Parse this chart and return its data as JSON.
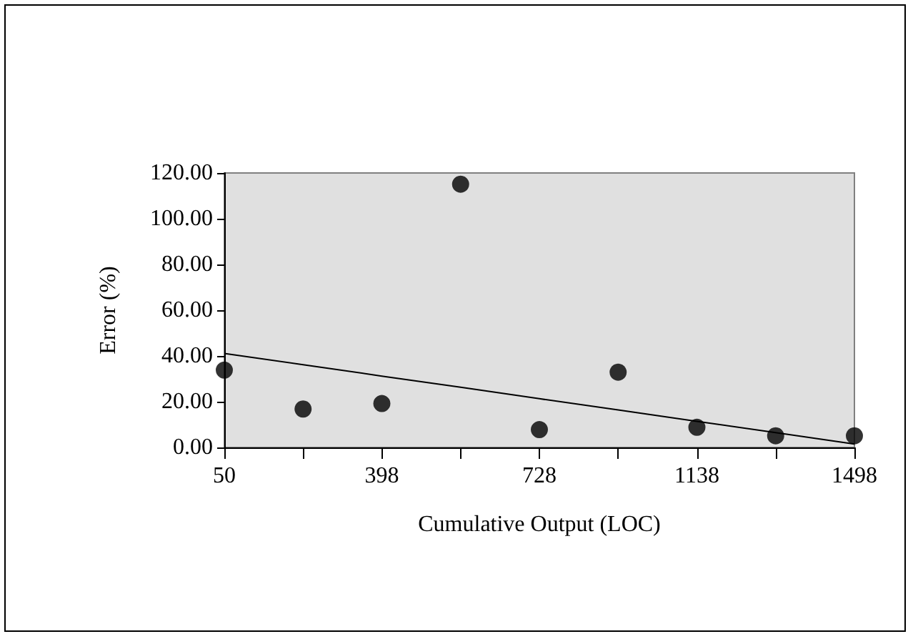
{
  "chart_data": {
    "type": "scatter",
    "xlabel": "Cumulative Output (LOC)",
    "ylabel": "Error (%)",
    "categories": [
      "50",
      null,
      "398",
      null,
      "728",
      null,
      "1138",
      null,
      "1498"
    ],
    "series": [
      {
        "color": "#000000",
        "marker": "circle",
        "values": [
          33.8,
          16.8,
          19.2,
          115.1,
          7.8,
          32.9,
          8.8,
          5.1,
          5.1
        ]
      },
      {
        "type": "line",
        "color": "#000000",
        "marker": "none",
        "line_style": "solid",
        "values": [
          41.1,
          36.2,
          31.2,
          26.3,
          21.3,
          16.4,
          11.4,
          6.5,
          1.5
        ]
      }
    ],
    "ylim": [
      0,
      120
    ],
    "yticks": [
      {
        "value": 0,
        "label": "0.00"
      },
      {
        "value": 20,
        "label": "20.00"
      },
      {
        "value": 40,
        "label": "40.00"
      },
      {
        "value": 60,
        "label": "60.00"
      },
      {
        "value": 80,
        "label": "80.00"
      },
      {
        "value": 100,
        "label": "100.00"
      },
      {
        "value": 120,
        "label": "120.00"
      }
    ],
    "grid": false
  }
}
